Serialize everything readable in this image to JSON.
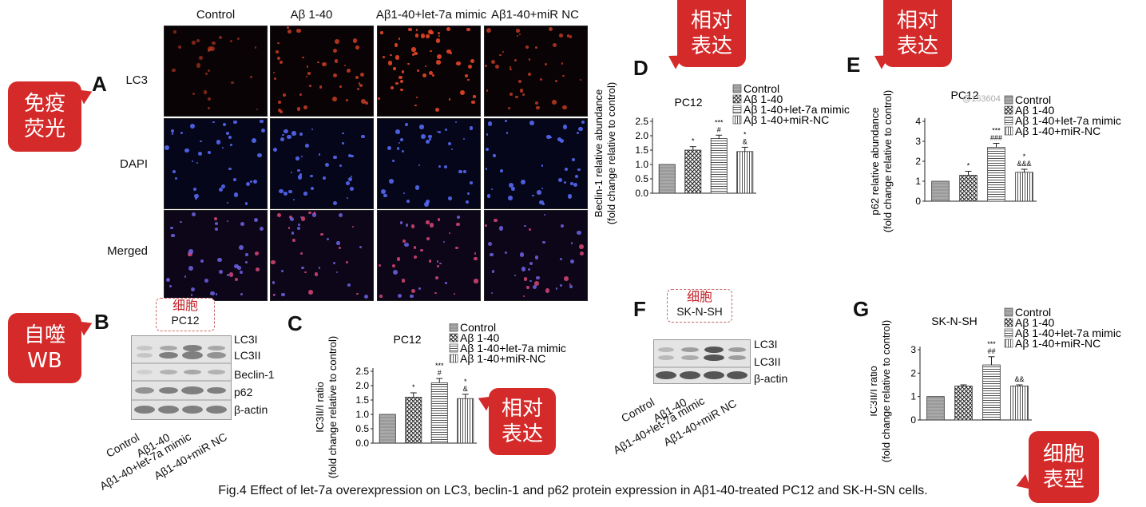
{
  "panels": {
    "A": "A",
    "B": "B",
    "C": "C",
    "D": "D",
    "E": "E",
    "F": "F",
    "G": "G"
  },
  "panelA": {
    "columns": [
      "Control",
      "Aβ 1-40",
      "Aβ1-40+let-7a mimic",
      "Aβ1-40+miR NC"
    ],
    "rows": [
      "LC3",
      "DAPI",
      "Merged"
    ]
  },
  "badges": {
    "if": "免疫\n荧光",
    "wb": "自噬\nWB",
    "rel_c": "相对\n表达",
    "rel_d": "相对\n表达",
    "rel_e": "相对\n表达",
    "pheno": "细胞\n表型"
  },
  "panelB": {
    "tag_cn": "细胞",
    "tag_en": "PC12",
    "bands": [
      "LC3I",
      "LC3II",
      "Beclin-1",
      "p62",
      "β-actin"
    ],
    "lanes": [
      "Control",
      "Aβ1-40",
      "Aβ1-40+let-7a mimic",
      "Aβ1-40+miR NC"
    ]
  },
  "panelF": {
    "tag_cn": "细胞",
    "tag_en": "SK-N-SH",
    "bands": [
      "LC3I",
      "LC3II",
      "β-actin"
    ],
    "lanes": [
      "Control",
      "Aβ1-40",
      "Aβ1-40+let-7a mimic",
      "Aβ1-40+miR NC"
    ]
  },
  "watermark": "@153604",
  "caption": "Fig.4 Effect of let-7a overexpression on LC3, beclin-1 and p62 protein expression in Aβ1-40-treated PC12 and SK-H-SN cells.",
  "chart_data": [
    {
      "panel": "C",
      "type": "bar",
      "title": "PC12",
      "ylabel": "IC3II/I ratio",
      "ylabel2": "(fold change relative to control)",
      "categories": [
        "Control",
        "Aβ 1-40",
        "Aβ 1-40+let-7a mimic",
        "Aβ 1-40+miR-NC"
      ],
      "values": [
        1.0,
        1.6,
        2.1,
        1.55
      ],
      "errors": [
        0,
        0.15,
        0.15,
        0.15
      ],
      "annotations": [
        "",
        "*",
        "***\n#",
        "*\n&"
      ],
      "yticks": [
        "0.0",
        "0.5",
        "1.0",
        "1.5",
        "2.0",
        "2.5"
      ],
      "ylim": [
        0,
        2.5
      ]
    },
    {
      "panel": "D",
      "type": "bar",
      "title": "PC12",
      "ylabel": "Beclin-1 relative abundance",
      "ylabel2": "(fold change relative to control)",
      "categories": [
        "Control",
        "Aβ 1-40",
        "Aβ 1-40+let-7a mimic",
        "Aβ 1-40+miR-NC"
      ],
      "values": [
        1.0,
        1.5,
        1.9,
        1.45
      ],
      "errors": [
        0,
        0.12,
        0.12,
        0.15
      ],
      "annotations": [
        "",
        "*",
        "***\n#",
        "*\n&"
      ],
      "yticks": [
        "0.0",
        "0.5",
        "1.0",
        "1.5",
        "2.0",
        "2.5"
      ],
      "ylim": [
        0,
        2.5
      ]
    },
    {
      "panel": "E",
      "type": "bar",
      "title": "PC12",
      "ylabel": "p62 relative abundance",
      "ylabel2": "(fold change relative to control)",
      "categories": [
        "Control",
        "Aβ 1-40",
        "Aβ 1-40+let-7a mimic",
        "Aβ 1-40+miR-NC"
      ],
      "values": [
        1.0,
        1.3,
        2.7,
        1.45
      ],
      "errors": [
        0,
        0.2,
        0.2,
        0.15
      ],
      "annotations": [
        "",
        "*",
        "***\n###",
        "*\n&&&"
      ],
      "yticks": [
        "0",
        "1",
        "2",
        "3",
        "4"
      ],
      "ylim": [
        0,
        4
      ]
    },
    {
      "panel": "G",
      "type": "bar",
      "title": "SK-N-SH",
      "ylabel": "IC3II/I ratio",
      "ylabel2": "(fold change relative to control)",
      "categories": [
        "Control",
        "Aβ 1-40",
        "Aβ 1-40+let-7a mimic",
        "Aβ 1-40+miR-NC"
      ],
      "values": [
        1.0,
        1.45,
        2.35,
        1.45
      ],
      "errors": [
        0,
        0.05,
        0.35,
        0.05
      ],
      "annotations": [
        "",
        "",
        "***\n##",
        "&&"
      ],
      "yticks": [
        "0",
        "1",
        "2",
        "3"
      ],
      "ylim": [
        0,
        3
      ]
    }
  ]
}
